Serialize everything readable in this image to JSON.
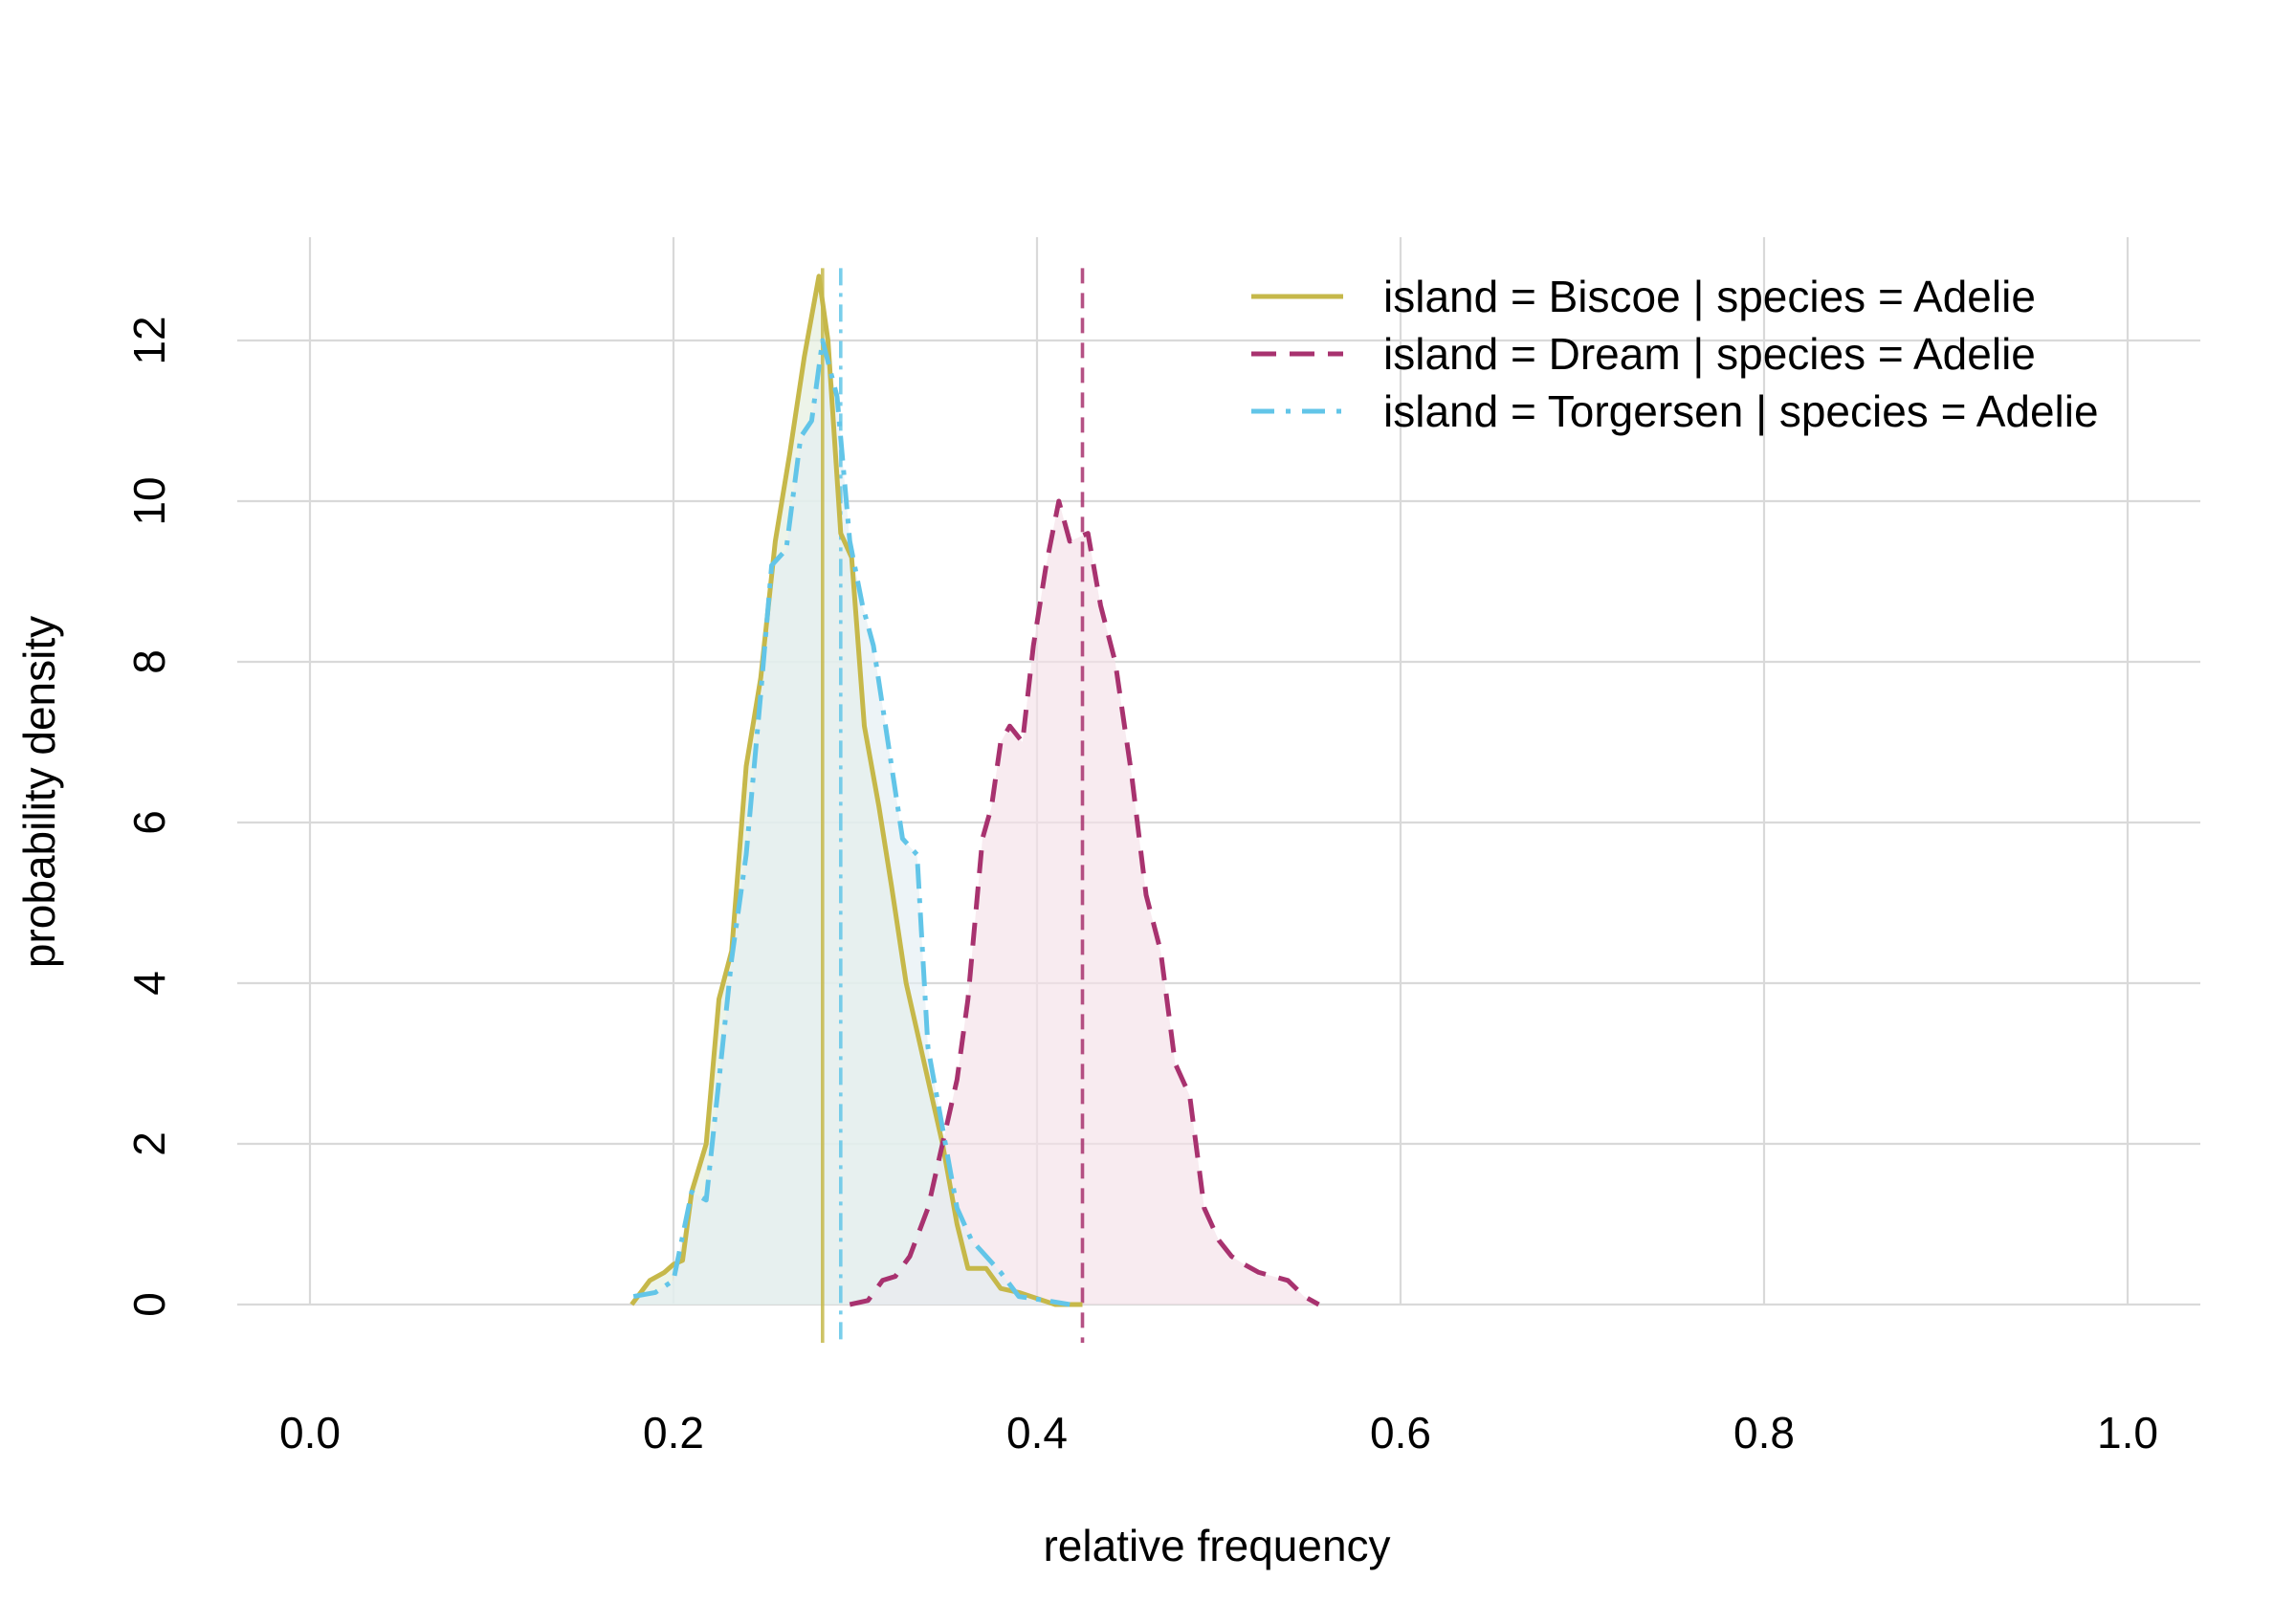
{
  "chart_data": {
    "type": "area",
    "title": "",
    "xlabel": "relative frequency",
    "ylabel": "probability density",
    "xlim": [
      -0.04,
      1.04
    ],
    "ylim": [
      -0.5,
      13.3
    ],
    "xticks": [
      0.0,
      0.2,
      0.4,
      0.6,
      0.8,
      1.0
    ],
    "xtick_labels": [
      "0.0",
      "0.2",
      "0.4",
      "0.6",
      "0.8",
      "1.0"
    ],
    "yticks": [
      0,
      2,
      4,
      6,
      8,
      10,
      12
    ],
    "ytick_labels": [
      "0",
      "2",
      "4",
      "6",
      "8",
      "10",
      "12"
    ],
    "grid": true,
    "legend_position": "top-right",
    "series": [
      {
        "name": "island = Biscoe | species = Adelie",
        "color": "#c6b84a",
        "fill": "#e3eedd",
        "line_style": "solid",
        "vline": 0.282,
        "x": [
          0.177,
          0.187,
          0.195,
          0.2,
          0.205,
          0.21,
          0.218,
          0.225,
          0.232,
          0.24,
          0.248,
          0.256,
          0.264,
          0.272,
          0.28,
          0.285,
          0.292,
          0.298,
          0.305,
          0.313,
          0.32,
          0.328,
          0.338,
          0.348,
          0.356,
          0.362,
          0.372,
          0.38,
          0.39,
          0.41,
          0.425
        ],
        "y": [
          0.0,
          0.3,
          0.4,
          0.5,
          0.55,
          1.4,
          2.0,
          3.8,
          4.4,
          6.7,
          7.8,
          9.5,
          10.6,
          11.8,
          12.8,
          12.0,
          9.6,
          9.3,
          7.2,
          6.2,
          5.2,
          4.0,
          3.0,
          2.0,
          1.0,
          0.45,
          0.45,
          0.2,
          0.15,
          0.0,
          0.0
        ]
      },
      {
        "name": "island = Dream | species = Adelie",
        "color": "#a8326f",
        "fill": "#f4e0e8",
        "line_style": "dashed",
        "vline": 0.425,
        "x": [
          0.297,
          0.307,
          0.315,
          0.322,
          0.33,
          0.34,
          0.348,
          0.356,
          0.362,
          0.37,
          0.375,
          0.38,
          0.385,
          0.392,
          0.398,
          0.405,
          0.412,
          0.418,
          0.428,
          0.435,
          0.443,
          0.452,
          0.46,
          0.468,
          0.476,
          0.484,
          0.492,
          0.5,
          0.507,
          0.514,
          0.522,
          0.53,
          0.538,
          0.547,
          0.555
        ],
        "y": [
          0.0,
          0.05,
          0.3,
          0.35,
          0.6,
          1.2,
          2.0,
          2.8,
          3.8,
          5.8,
          6.2,
          7.0,
          7.2,
          7.0,
          8.2,
          9.2,
          10.0,
          9.5,
          9.6,
          8.7,
          8.0,
          6.6,
          5.1,
          4.4,
          3.0,
          2.6,
          1.2,
          0.8,
          0.6,
          0.5,
          0.4,
          0.35,
          0.3,
          0.1,
          0.0
        ]
      },
      {
        "name": "island = Torgersen | species = Adelie",
        "color": "#62c5e8",
        "fill": "#e4eef2",
        "line_style": "dotdash",
        "vline": 0.292,
        "x": [
          0.178,
          0.19,
          0.2,
          0.21,
          0.218,
          0.226,
          0.232,
          0.24,
          0.248,
          0.254,
          0.262,
          0.27,
          0.276,
          0.282,
          0.29,
          0.297,
          0.304,
          0.31,
          0.318,
          0.326,
          0.334,
          0.34,
          0.348,
          0.356,
          0.364,
          0.372,
          0.38,
          0.39,
          0.405,
          0.418
        ],
        "y": [
          0.1,
          0.15,
          0.3,
          1.4,
          1.3,
          3.0,
          4.3,
          5.6,
          7.6,
          9.2,
          9.4,
          10.8,
          11.0,
          12.0,
          11.3,
          9.5,
          8.7,
          8.2,
          7.0,
          5.8,
          5.6,
          3.2,
          2.2,
          1.2,
          0.8,
          0.6,
          0.4,
          0.1,
          0.05,
          0.0
        ]
      }
    ]
  }
}
